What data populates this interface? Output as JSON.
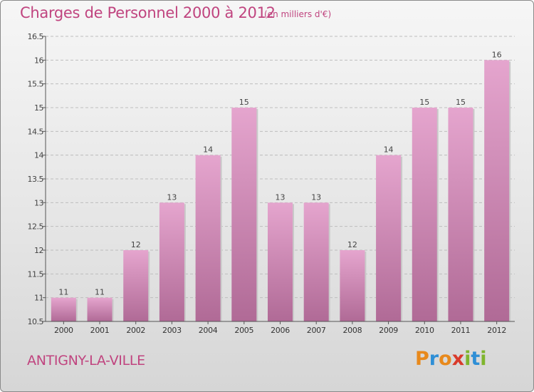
{
  "header": {
    "title": "Charges de Personnel 2000 à 2012",
    "subtitle": "(en milliers d'€)"
  },
  "footer": {
    "place": "ANTIGNY-LA-VILLE",
    "logo_letters": [
      "P",
      "r",
      "o",
      "x",
      "i",
      "t",
      "i"
    ],
    "logo_colors": [
      "#e8891c",
      "#2f8fd6",
      "#e8891c",
      "#d93a2b",
      "#7fb52d",
      "#2f8fd6",
      "#7fb52d"
    ]
  },
  "colors": {
    "bar_top": "#e5a5ce",
    "bar_bottom": "#b06a96",
    "text": "#c0447f",
    "axis": "#555555",
    "grid": "#bdbdbd"
  },
  "chart_data": {
    "type": "bar",
    "categories": [
      "2000",
      "2001",
      "2002",
      "2003",
      "2004",
      "2005",
      "2006",
      "2007",
      "2008",
      "2009",
      "2010",
      "2011",
      "2012"
    ],
    "values": [
      11,
      11,
      12,
      13,
      14,
      15,
      13,
      13,
      12,
      14,
      15,
      15,
      16
    ],
    "data_labels": [
      "11",
      "11",
      "12",
      "13",
      "14",
      "15",
      "13",
      "13",
      "12",
      "14",
      "15",
      "15",
      "16"
    ],
    "yticks": [
      "10.5",
      "11",
      "11.5",
      "12",
      "12.5",
      "13",
      "13.5",
      "14",
      "14.5",
      "15",
      "15.5",
      "16",
      "16.5"
    ],
    "ylim": [
      10.5,
      16.5
    ],
    "grid": "horizontal dashed"
  }
}
